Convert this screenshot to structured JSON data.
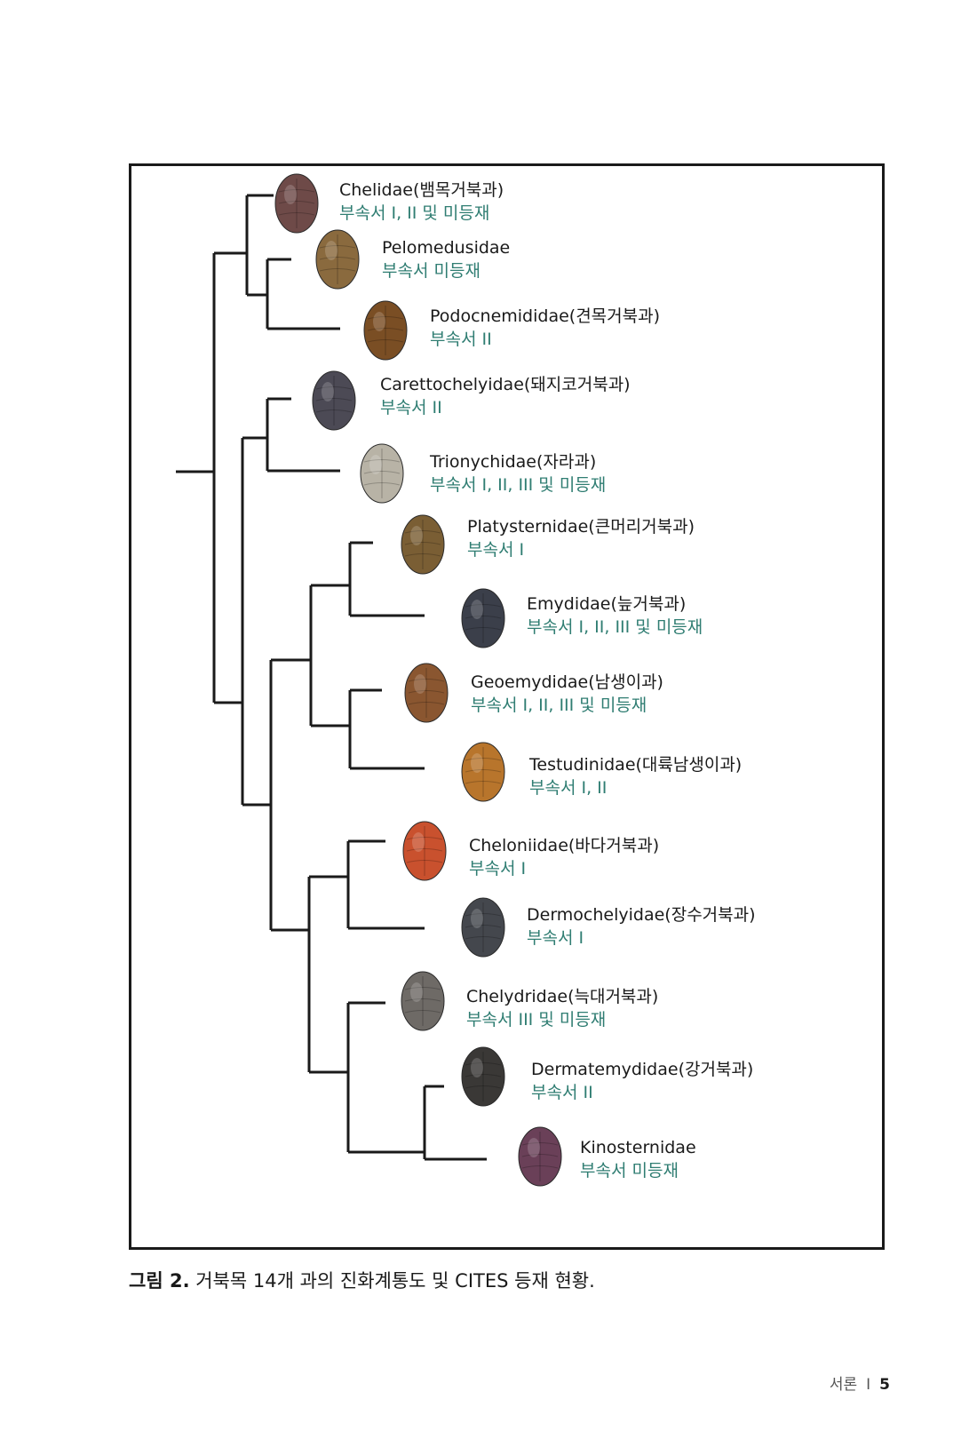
{
  "taxa": [
    {
      "name": "Chelidae(뱀목거북과)",
      "cites": "부속서 I, II 및 미등재",
      "shell_color": "#6e4a48",
      "shell_icon": "chelidae-shell-icon"
    },
    {
      "name": "Pelomedusidae",
      "cites": "부속서 미등재",
      "shell_color": "#8a6a3e",
      "shell_icon": "pelomedusidae-shell-icon"
    },
    {
      "name": "Podocnemididae(견목거북과)",
      "cites": "부속서 II",
      "shell_color": "#7a4e24",
      "shell_icon": "podocnemididae-shell-icon"
    },
    {
      "name": "Carettochelyidae(돼지코거북과)",
      "cites": "부속서 II",
      "shell_color": "#4c4a55",
      "shell_icon": "carettochelyidae-shell-icon"
    },
    {
      "name": "Trionychidae(자라과)",
      "cites": "부속서 I, II, III 및 미등재",
      "shell_color": "#b8b3a6",
      "shell_icon": "trionychidae-shell-icon"
    },
    {
      "name": "Platysternidae(큰머리거북과)",
      "cites": "부속서 I",
      "shell_color": "#7a5e34",
      "shell_icon": "platysternidae-shell-icon"
    },
    {
      "name": "Emydidae(늪거북과)",
      "cites": "부속서 I, II, III 및 미등재",
      "shell_color": "#3b3f4a",
      "shell_icon": "emydidae-shell-icon"
    },
    {
      "name": "Geoemydidae(남생이과)",
      "cites": "부속서 I, II, III 및 미등재",
      "shell_color": "#8a5630",
      "shell_icon": "geoemydidae-shell-icon"
    },
    {
      "name": "Testudinidae(대륙남생이과)",
      "cites": "부속서 I, II",
      "shell_color": "#b8752c",
      "shell_icon": "testudinidae-shell-icon"
    },
    {
      "name": "Cheloniidae(바다거북과)",
      "cites": "부속서 I",
      "shell_color": "#c9512e",
      "shell_icon": "cheloniidae-shell-icon"
    },
    {
      "name": "Dermochelyidae(장수거북과)",
      "cites": "부속서 I",
      "shell_color": "#44474d",
      "shell_icon": "dermochelyidae-shell-icon"
    },
    {
      "name": "Chelydridae(늑대거북과)",
      "cites": "부속서 III 및 미등재",
      "shell_color": "#6e6a66",
      "shell_icon": "chelydridae-shell-icon"
    },
    {
      "name": "Dermatemydidae(강거북과)",
      "cites": "부속서 II",
      "shell_color": "#3a3836",
      "shell_icon": "dermatemydidae-shell-icon"
    },
    {
      "name": "Kinosternidae",
      "cites": "부속서 미등재",
      "shell_color": "#6a4058",
      "shell_icon": "kinosternidae-shell-icon"
    }
  ],
  "caption": {
    "label": "그림 2.",
    "text": "거북목 14개 과의 진화계통도 및 CITES 등재 현황."
  },
  "footer": {
    "section": "서론",
    "separator": "I",
    "page": "5"
  },
  "colors": {
    "cites_text": "#2f7d72",
    "frame": "#1a1a1a",
    "branch": "#1a1a1a"
  }
}
